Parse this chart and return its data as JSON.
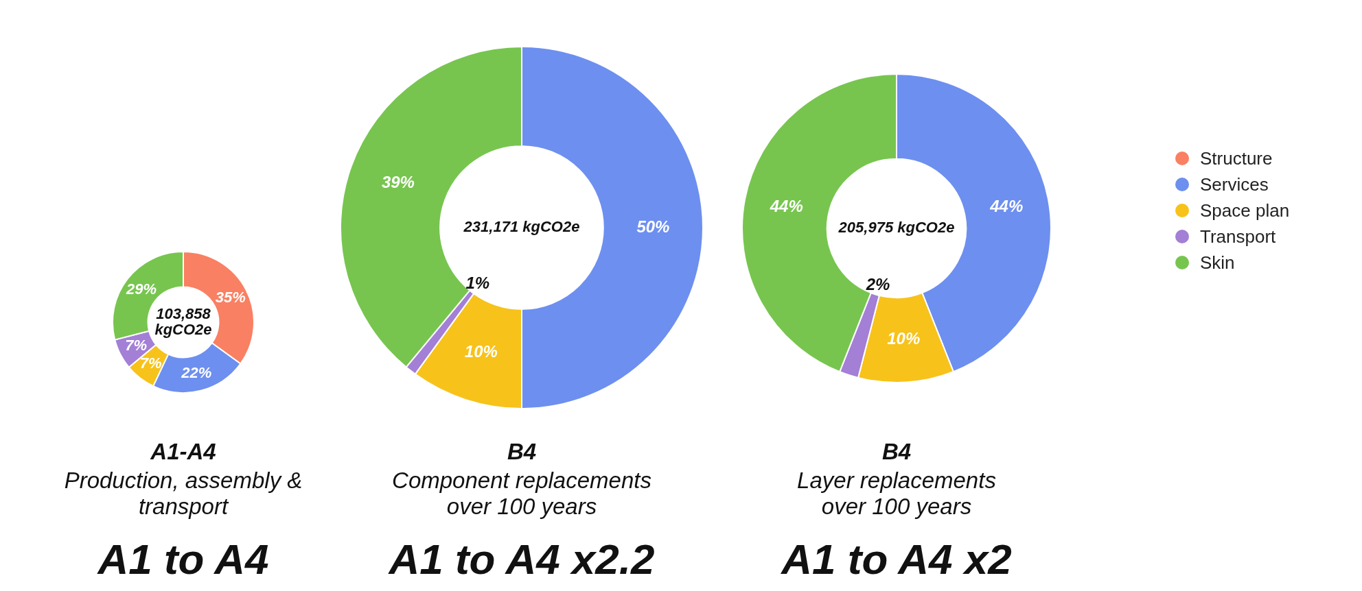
{
  "chart_data": [
    {
      "type": "donut",
      "title": "A1-A4",
      "subtitle": "Production, assembly & transport",
      "categories": [
        null,
        null,
        null,
        null,
        null
      ],
      "values": [
        35,
        22,
        7,
        7,
        29
      ],
      "colors": [
        "#f98062",
        "#6d8fef",
        "#f7c21a",
        "#a37fd6",
        "#77c54f"
      ],
      "value_labels": [
        "35%",
        "22%",
        "7%",
        "7%",
        "29%"
      ],
      "annotations": [
        "103,858 kgCO2e",
        "A1 to A4"
      ]
    },
    {
      "type": "donut",
      "title": "B4",
      "subtitle": "Component replacements over 100 years",
      "categories": [
        null,
        null,
        null,
        null,
        null
      ],
      "values": [
        0,
        50,
        10,
        1,
        39
      ],
      "colors": [
        "#f98062",
        "#6d8fef",
        "#f7c21a",
        "#a37fd6",
        "#77c54f"
      ],
      "value_labels": [
        null,
        "50%",
        "10%",
        "1%",
        "39%"
      ],
      "annotations": [
        "231,171 kgCO2e",
        "A1 to A4 x2.2"
      ]
    },
    {
      "type": "donut",
      "title": "B4",
      "subtitle": "Layer replacements over 100 years",
      "categories": [
        "Structure",
        "Services",
        "Space plan",
        "Transport",
        "Skin"
      ],
      "values": [
        0,
        44,
        10,
        2,
        44
      ],
      "colors": [
        "#f98062",
        "#6d8fef",
        "#f7c21a",
        "#a37fd6",
        "#77c54f"
      ],
      "value_labels": [
        null,
        "44%",
        "10%",
        "2%",
        "44%"
      ],
      "annotations": [
        "205,975 kgCO2e",
        "A1 to A4 x2"
      ],
      "legend": "right"
    }
  ]
}
